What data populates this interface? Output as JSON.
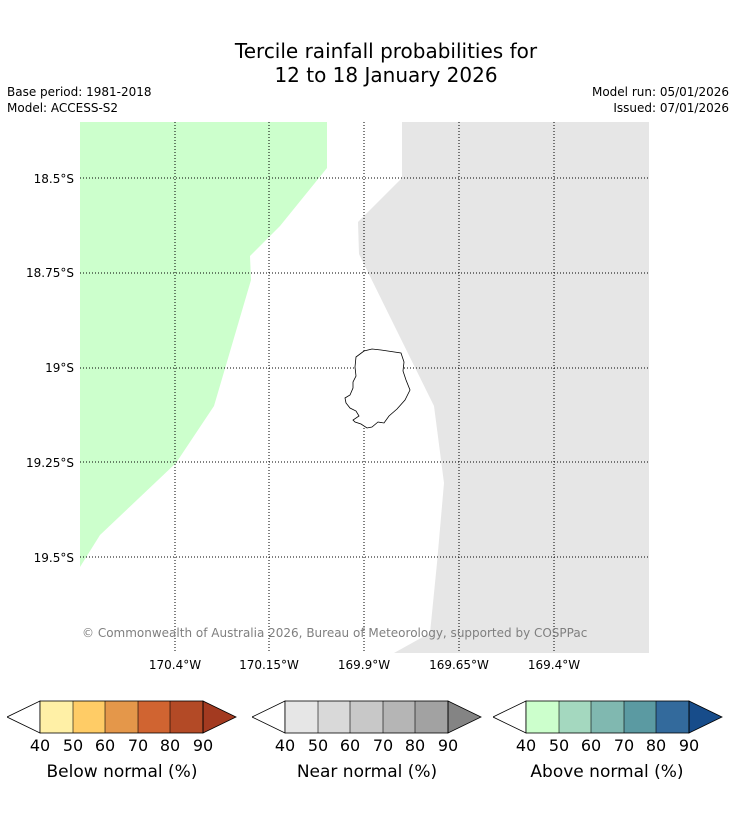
{
  "title_line1": "Tercile rainfall probabilities for",
  "title_line2": "12 to 18 January 2026",
  "base_period": "Base period: 1981-2018",
  "model": "Model: ACCESS-S2",
  "model_run": "Model run: 05/01/2026",
  "issued": "Issued: 07/01/2026",
  "lat_labels": [
    "18.5°S",
    "18.75°S",
    "19°S",
    "19.25°S",
    "19.5°S"
  ],
  "lon_labels": [
    "170.4°W",
    "170.15°W",
    "169.9°W",
    "169.65°W",
    "169.4°W"
  ],
  "copyright": "© Commonwealth of Australia 2026, Bureau of Meteorology, supported by COSPPac",
  "map_regions": {
    "above_normal_color": "#ccffcc",
    "near_normal_color": "#e6e6e6"
  },
  "colorbars": [
    {
      "title": "Below normal (%)",
      "ticks": [
        "40",
        "50",
        "60",
        "70",
        "80",
        "90"
      ],
      "colors": [
        "#fff0a6",
        "#ffcc66",
        "#e4974a",
        "#d06431",
        "#b34a26",
        "#a33a20"
      ]
    },
    {
      "title": "Near normal (%)",
      "ticks": [
        "40",
        "50",
        "60",
        "70",
        "80",
        "90"
      ],
      "colors": [
        "#e6e6e6",
        "#d9d9d9",
        "#c8c8c8",
        "#b5b5b5",
        "#a2a2a2",
        "#848484"
      ]
    },
    {
      "title": "Above normal (%)",
      "ticks": [
        "40",
        "50",
        "60",
        "70",
        "80",
        "90"
      ],
      "colors": [
        "#ccffcc",
        "#a4d8bf",
        "#80b8b0",
        "#5b9aa2",
        "#336a9c",
        "#174c8a"
      ]
    }
  ]
}
